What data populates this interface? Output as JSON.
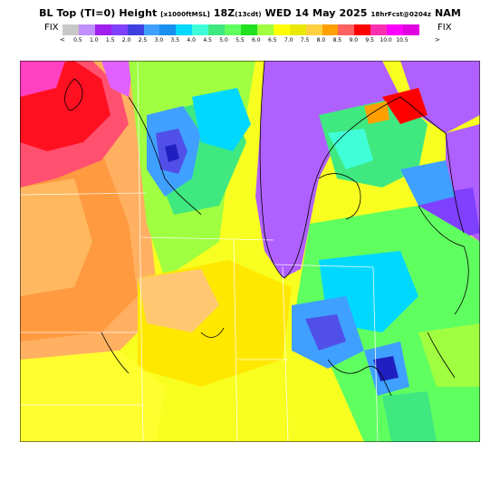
{
  "header": {
    "title_prefix": "BL Top (TI=0)  Height",
    "title_units": "[x1000ftMSL]",
    "title_time": "18Z",
    "title_offset": "(13cdt)",
    "title_date": "WED 14 May 2025",
    "title_run": "18hrFcst@0204z",
    "title_model": "NAM"
  },
  "scale": {
    "fix_left": "FIX",
    "fix_right": "FIX",
    "arrow_left": "<",
    "arrow_right": ">",
    "labels": [
      "0.5",
      "1.0",
      "1.5",
      "2.0",
      "2.5",
      "3.0",
      "3.5",
      "4.0",
      "4.5",
      "5.0",
      "5.5",
      "6.0",
      "6.5",
      "7.0",
      "7.5",
      "8.0",
      "8.5",
      "9.0",
      "9.5",
      "10.0",
      "10.5"
    ],
    "colors": [
      "#c8c8c8",
      "#c090ff",
      "#a020f0",
      "#8040ff",
      "#4040e0",
      "#40a0ff",
      "#1890f0",
      "#00d8ff",
      "#40ffd8",
      "#40e880",
      "#60ff60",
      "#20e020",
      "#a0ff40",
      "#ffff00",
      "#e8e800",
      "#ffd040",
      "#ffa000",
      "#ff6060",
      "#ff0000",
      "#ff30b0",
      "#ff00ff",
      "#e000e0"
    ]
  },
  "map": {
    "description_colors": {
      "lake": "#b060ff",
      "border": "#ffffff",
      "coast": "#000000"
    }
  }
}
